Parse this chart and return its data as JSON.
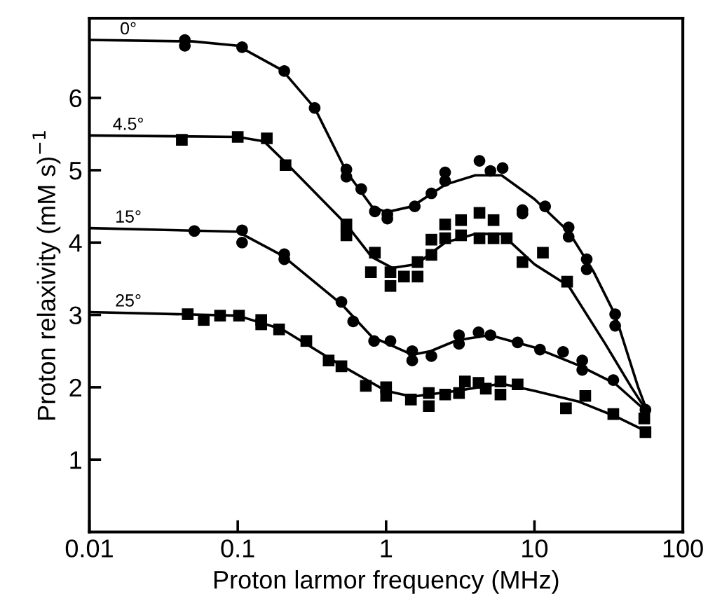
{
  "chart_data": {
    "type": "scatter",
    "xlabel": "Proton larmor frequency (MHz)",
    "ylabel": "Proton relaxivity (mM s)$^{−1}$",
    "log": "x",
    "xlim": [
      0.01,
      100
    ],
    "xticks": [
      0.01,
      0.1,
      1,
      10,
      100
    ],
    "ylim": [
      0,
      7.1
    ],
    "yticks": [
      1,
      2,
      3,
      4,
      5,
      6
    ],
    "grid": false,
    "legend": false,
    "annotations": [
      "0°",
      "4.5°",
      "15°",
      "25°"
    ],
    "series": [
      {
        "type": "line",
        "marker": "none",
        "color": "#000000",
        "x": [
          0.01,
          0.05,
          0.1,
          0.2,
          0.33,
          0.54,
          0.8,
          1.0,
          1.5,
          2.5,
          4,
          6,
          10,
          17,
          25,
          35,
          50,
          58
        ],
        "values": [
          6.8,
          6.78,
          6.72,
          6.38,
          5.86,
          4.98,
          4.5,
          4.42,
          4.5,
          4.8,
          4.93,
          4.93,
          4.6,
          4.15,
          3.6,
          3.0,
          2.0,
          1.65
        ]
      },
      {
        "type": "line",
        "marker": "none",
        "color": "#000000",
        "x": [
          0.01,
          0.1,
          0.15,
          0.2,
          0.54,
          0.8,
          1.1,
          1.6,
          2.5,
          4,
          6,
          10,
          17,
          30,
          45,
          58
        ],
        "values": [
          5.48,
          5.46,
          5.4,
          5.15,
          4.25,
          3.8,
          3.65,
          3.7,
          4.0,
          4.12,
          4.12,
          3.7,
          3.4,
          2.6,
          2.0,
          1.65
        ]
      },
      {
        "type": "line",
        "marker": "none",
        "color": "#000000",
        "x": [
          0.01,
          0.1,
          0.2,
          0.5,
          0.8,
          1.5,
          2,
          3,
          5,
          10,
          20,
          35,
          58
        ],
        "values": [
          4.2,
          4.15,
          3.82,
          3.15,
          2.7,
          2.45,
          2.5,
          2.65,
          2.72,
          2.55,
          2.3,
          2.05,
          1.65
        ]
      },
      {
        "type": "line",
        "marker": "none",
        "color": "#000000",
        "x": [
          0.01,
          0.1,
          0.2,
          0.5,
          1,
          1.5,
          3,
          6,
          10,
          20,
          35,
          58
        ],
        "values": [
          3.04,
          2.99,
          2.8,
          2.3,
          1.95,
          1.87,
          1.95,
          2.05,
          1.95,
          1.8,
          1.6,
          1.38
        ]
      },
      {
        "marker": "circle",
        "color": "#000000",
        "x": [
          0.044,
          0.044,
          0.107,
          0.206,
          0.33,
          0.54,
          0.54,
          0.68,
          0.84,
          1.02,
          1.02,
          1.56,
          2.02,
          2.5,
          2.5,
          4.26,
          5.05,
          6.1,
          8.3,
          8.3,
          11.8,
          17,
          17,
          22.5,
          22.5,
          35,
          35,
          56
        ],
        "values": [
          6.72,
          6.8,
          6.7,
          6.37,
          5.86,
          5.01,
          4.91,
          4.74,
          4.43,
          4.33,
          4.39,
          4.5,
          4.68,
          4.85,
          4.97,
          5.13,
          4.99,
          5.03,
          4.45,
          4.4,
          4.5,
          4.21,
          4.08,
          3.77,
          3.63,
          3.01,
          2.85,
          1.69
        ]
      },
      {
        "marker": "square",
        "color": "#000000",
        "x": [
          0.042,
          0.1,
          0.157,
          0.21,
          0.54,
          0.54,
          0.84,
          0.79,
          1.07,
          1.07,
          1.32,
          1.63,
          1.63,
          2.02,
          2.02,
          2.5,
          2.5,
          3.2,
          3.2,
          4.26,
          4.26,
          5.3,
          5.3,
          6.5,
          8.3,
          11.4,
          16.6,
          55
        ],
        "values": [
          5.42,
          5.46,
          5.44,
          5.07,
          4.25,
          4.1,
          3.86,
          3.59,
          3.59,
          3.4,
          3.53,
          3.53,
          3.73,
          3.83,
          4.04,
          4.06,
          4.25,
          4.1,
          4.31,
          4.06,
          4.41,
          4.06,
          4.31,
          4.06,
          3.73,
          3.86,
          3.46,
          1.57
        ]
      },
      {
        "marker": "circle",
        "color": "#000000",
        "x": [
          0.051,
          0.107,
          0.107,
          0.206,
          0.206,
          0.5,
          0.6,
          0.83,
          1.07,
          1.5,
          1.5,
          2.02,
          3.1,
          3.1,
          4.2,
          5.05,
          7.7,
          10.9,
          15.6,
          21,
          21,
          34
        ],
        "values": [
          4.16,
          4.17,
          4.0,
          3.84,
          3.77,
          3.18,
          2.91,
          2.64,
          2.64,
          2.5,
          2.37,
          2.43,
          2.72,
          2.6,
          2.76,
          2.72,
          2.62,
          2.52,
          2.49,
          2.37,
          2.24,
          2.1
        ]
      },
      {
        "marker": "square",
        "color": "#000000",
        "x": [
          0.046,
          0.059,
          0.076,
          0.102,
          0.144,
          0.144,
          0.19,
          0.29,
          0.41,
          0.5,
          0.73,
          1.0,
          1.0,
          1.47,
          1.94,
          1.94,
          2.5,
          3.1,
          3.4,
          4.2,
          4.7,
          5.9,
          5.9,
          7.7,
          16.3,
          22,
          34,
          56
        ],
        "values": [
          3.01,
          2.93,
          2.99,
          2.99,
          2.93,
          2.87,
          2.8,
          2.64,
          2.37,
          2.29,
          2.02,
          2.0,
          1.88,
          1.83,
          1.92,
          1.74,
          1.9,
          1.92,
          2.08,
          2.06,
          1.98,
          2.08,
          1.9,
          2.04,
          1.71,
          1.88,
          1.63,
          1.38
        ]
      }
    ]
  }
}
